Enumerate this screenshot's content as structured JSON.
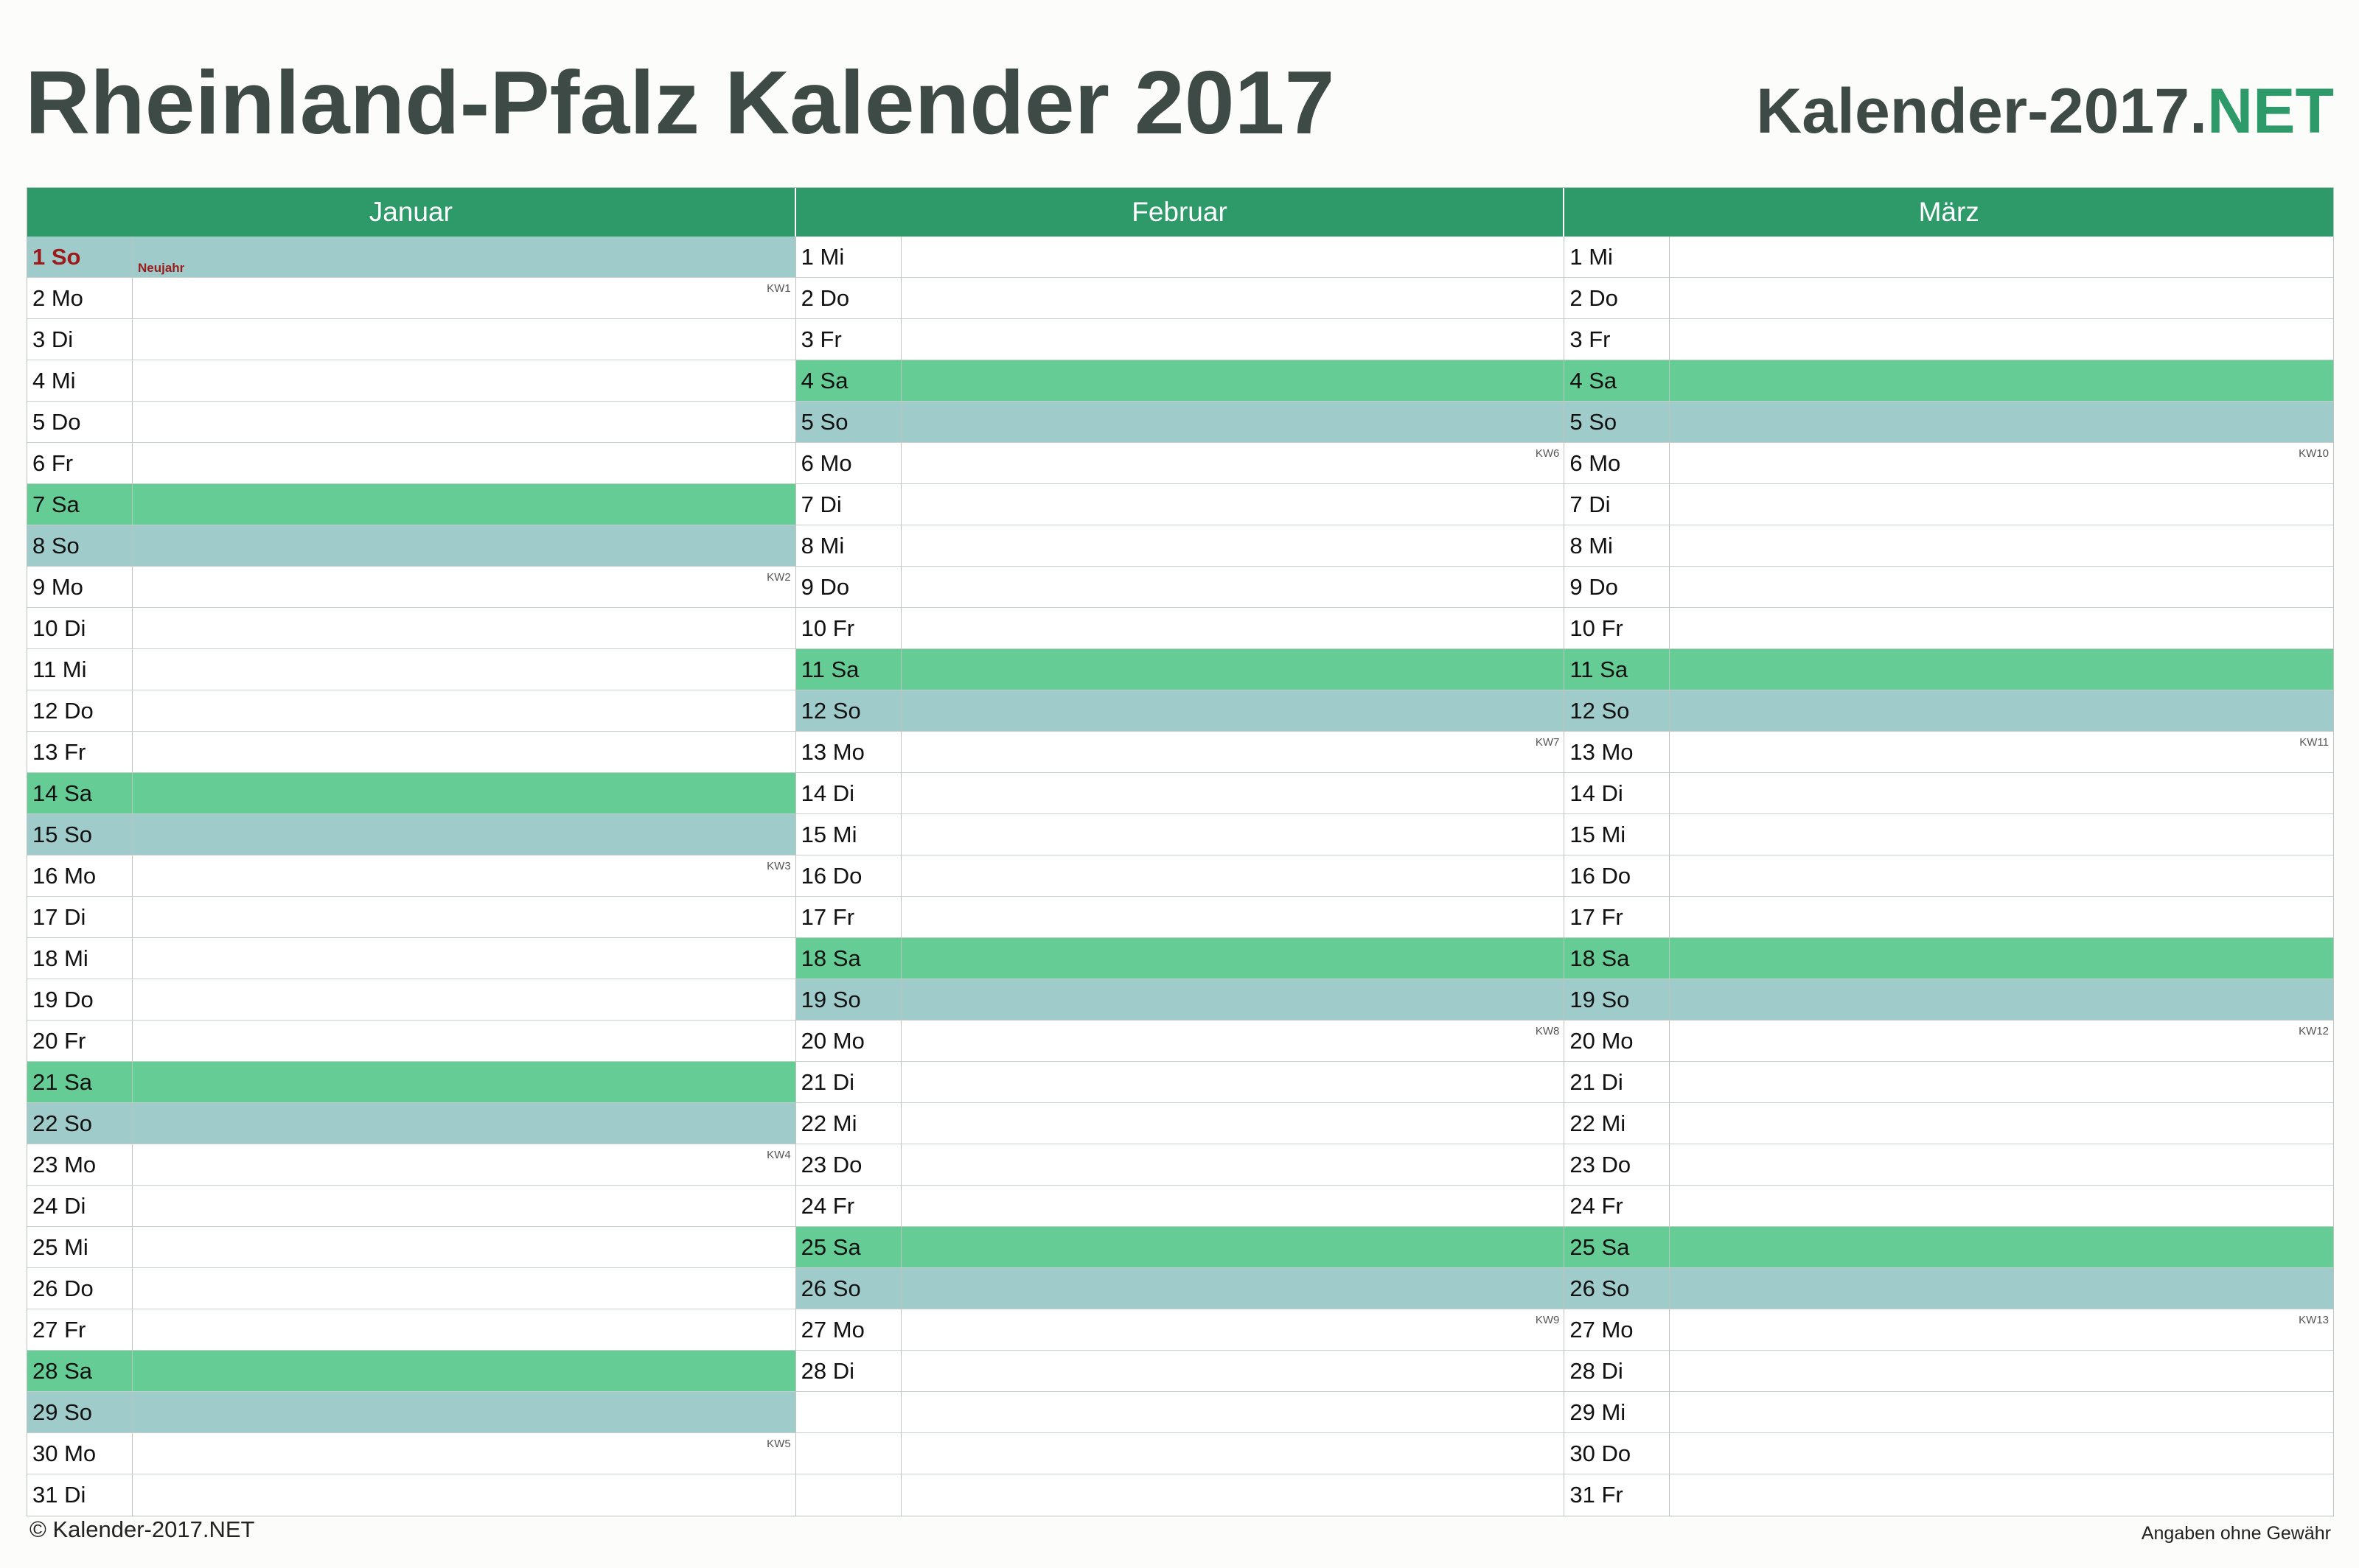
{
  "title": "Rheinland-Pfalz Kalender 2017",
  "brand": {
    "main": "Kalender-2017.",
    "suffix": "NET"
  },
  "colors": {
    "header_green": "#2e9a6a",
    "saturday_green": "#66cc96",
    "sunday_blue": "#a0cbcb",
    "holiday_red": "#9b1b1b",
    "title_gray": "#3d4a45"
  },
  "months": [
    {
      "name": "Januar",
      "days": [
        {
          "label": "1 So",
          "type": "sun",
          "holiday": "Neujahr"
        },
        {
          "label": "2 Mo",
          "week": "KW1"
        },
        {
          "label": "3 Di"
        },
        {
          "label": "4 Mi"
        },
        {
          "label": "5 Do"
        },
        {
          "label": "6 Fr"
        },
        {
          "label": "7 Sa",
          "type": "sat"
        },
        {
          "label": "8 So",
          "type": "sun"
        },
        {
          "label": "9 Mo",
          "week": "KW2"
        },
        {
          "label": "10 Di"
        },
        {
          "label": "11 Mi"
        },
        {
          "label": "12 Do"
        },
        {
          "label": "13 Fr"
        },
        {
          "label": "14 Sa",
          "type": "sat"
        },
        {
          "label": "15 So",
          "type": "sun"
        },
        {
          "label": "16 Mo",
          "week": "KW3"
        },
        {
          "label": "17 Di"
        },
        {
          "label": "18 Mi"
        },
        {
          "label": "19 Do"
        },
        {
          "label": "20 Fr"
        },
        {
          "label": "21 Sa",
          "type": "sat"
        },
        {
          "label": "22 So",
          "type": "sun"
        },
        {
          "label": "23 Mo",
          "week": "KW4"
        },
        {
          "label": "24 Di"
        },
        {
          "label": "25 Mi"
        },
        {
          "label": "26 Do"
        },
        {
          "label": "27 Fr"
        },
        {
          "label": "28 Sa",
          "type": "sat"
        },
        {
          "label": "29 So",
          "type": "sun"
        },
        {
          "label": "30 Mo",
          "week": "KW5"
        },
        {
          "label": "31 Di"
        }
      ]
    },
    {
      "name": "Februar",
      "days": [
        {
          "label": "1 Mi"
        },
        {
          "label": "2 Do"
        },
        {
          "label": "3 Fr"
        },
        {
          "label": "4 Sa",
          "type": "sat"
        },
        {
          "label": "5 So",
          "type": "sun"
        },
        {
          "label": "6 Mo",
          "week": "KW6"
        },
        {
          "label": "7 Di"
        },
        {
          "label": "8 Mi"
        },
        {
          "label": "9 Do"
        },
        {
          "label": "10 Fr"
        },
        {
          "label": "11 Sa",
          "type": "sat"
        },
        {
          "label": "12 So",
          "type": "sun"
        },
        {
          "label": "13 Mo",
          "week": "KW7"
        },
        {
          "label": "14 Di"
        },
        {
          "label": "15 Mi"
        },
        {
          "label": "16 Do"
        },
        {
          "label": "17 Fr"
        },
        {
          "label": "18 Sa",
          "type": "sat"
        },
        {
          "label": "19 So",
          "type": "sun"
        },
        {
          "label": "20 Mo",
          "week": "KW8"
        },
        {
          "label": "21 Di"
        },
        {
          "label": "22 Mi"
        },
        {
          "label": "23 Do"
        },
        {
          "label": "24 Fr"
        },
        {
          "label": "25 Sa",
          "type": "sat"
        },
        {
          "label": "26 So",
          "type": "sun"
        },
        {
          "label": "27 Mo",
          "week": "KW9"
        },
        {
          "label": "28 Di"
        },
        {
          "label": ""
        },
        {
          "label": ""
        },
        {
          "label": ""
        }
      ]
    },
    {
      "name": "März",
      "days": [
        {
          "label": "1 Mi"
        },
        {
          "label": "2 Do"
        },
        {
          "label": "3 Fr"
        },
        {
          "label": "4 Sa",
          "type": "sat"
        },
        {
          "label": "5 So",
          "type": "sun"
        },
        {
          "label": "6 Mo",
          "week": "KW10"
        },
        {
          "label": "7 Di"
        },
        {
          "label": "8 Mi"
        },
        {
          "label": "9 Do"
        },
        {
          "label": "10 Fr"
        },
        {
          "label": "11 Sa",
          "type": "sat"
        },
        {
          "label": "12 So",
          "type": "sun"
        },
        {
          "label": "13 Mo",
          "week": "KW11"
        },
        {
          "label": "14 Di"
        },
        {
          "label": "15 Mi"
        },
        {
          "label": "16 Do"
        },
        {
          "label": "17 Fr"
        },
        {
          "label": "18 Sa",
          "type": "sat"
        },
        {
          "label": "19 So",
          "type": "sun"
        },
        {
          "label": "20 Mo",
          "week": "KW12"
        },
        {
          "label": "21 Di"
        },
        {
          "label": "22 Mi"
        },
        {
          "label": "23 Do"
        },
        {
          "label": "24 Fr"
        },
        {
          "label": "25 Sa",
          "type": "sat"
        },
        {
          "label": "26 So",
          "type": "sun"
        },
        {
          "label": "27 Mo",
          "week": "KW13"
        },
        {
          "label": "28 Di"
        },
        {
          "label": "29 Mi"
        },
        {
          "label": "30 Do"
        },
        {
          "label": "31 Fr"
        }
      ]
    }
  ],
  "footer": {
    "copyright": "© Kalender-2017.NET",
    "disclaimer": "Angaben ohne Gewähr"
  }
}
